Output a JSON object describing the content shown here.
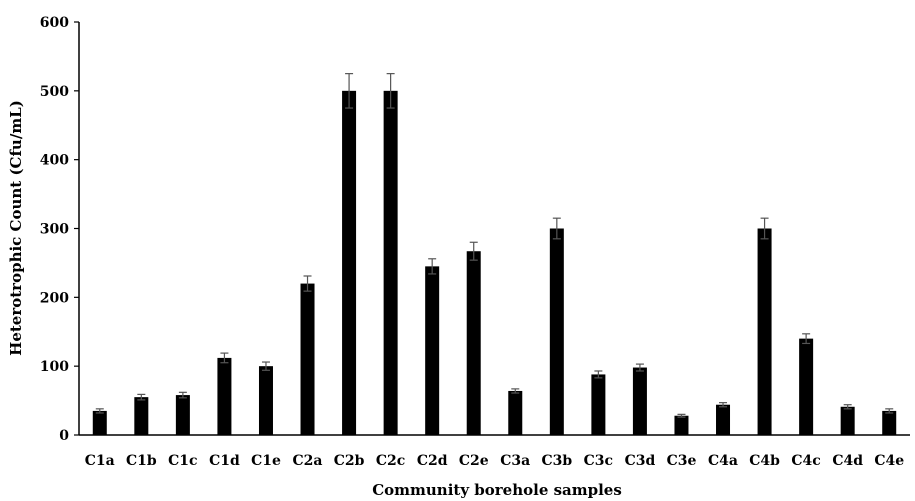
{
  "chart_data": {
    "type": "bar",
    "title": "",
    "xlabel": "Community borehole samples",
    "ylabel": "Heterotrophic Count (Cfu/mL)",
    "ylim": [
      0,
      600
    ],
    "yticks": [
      0,
      100,
      200,
      300,
      400,
      500,
      600
    ],
    "grid": false,
    "legend": "none",
    "categories": [
      "C1a",
      "C1b",
      "C1c",
      "C1d",
      "C1e",
      "C2a",
      "C2b",
      "C2c",
      "C2d",
      "C2e",
      "C3a",
      "C3b",
      "C3c",
      "C3d",
      "C3e",
      "C4a",
      "C4b",
      "C4c",
      "C4d",
      "C4e"
    ],
    "values": [
      35,
      55,
      58,
      112,
      100,
      220,
      500,
      500,
      245,
      267,
      64,
      300,
      88,
      98,
      28,
      44,
      300,
      140,
      41,
      35
    ],
    "error": [
      3,
      4,
      4,
      7,
      6,
      11,
      25,
      25,
      11,
      13,
      3,
      15,
      5,
      5,
      2,
      3,
      15,
      7,
      3,
      3
    ],
    "bar_color": "#000000",
    "error_bar_color": "#555555"
  }
}
